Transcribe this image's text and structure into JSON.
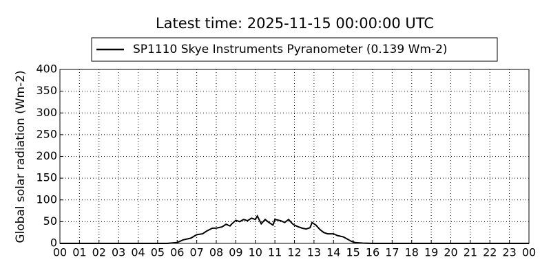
{
  "chart_data": {
    "type": "line",
    "title": "Latest time: 2025-11-15 00:00:00 UTC",
    "ylabel": "Global solar radiation (Wm-2)",
    "x": [
      0,
      5.5,
      6.0,
      6.3,
      6.7,
      7.0,
      7.3,
      7.5,
      7.8,
      8.0,
      8.3,
      8.5,
      8.7,
      8.8,
      9.0,
      9.2,
      9.4,
      9.6,
      9.8,
      10.0,
      10.1,
      10.3,
      10.5,
      10.7,
      10.9,
      11.0,
      11.3,
      11.5,
      11.7,
      11.9,
      12.0,
      12.2,
      12.4,
      12.6,
      12.8,
      12.9,
      13.1,
      13.3,
      13.5,
      13.7,
      14.0,
      14.2,
      14.5,
      14.7,
      14.9,
      15.1,
      15.5,
      16.0,
      24
    ],
    "series": [
      {
        "name": "SP1110 Skye Instruments Pyranometer (0.139 Wm-2)",
        "color": "#000000",
        "values": [
          0,
          0,
          2,
          8,
          12,
          20,
          22,
          28,
          35,
          35,
          38,
          44,
          40,
          45,
          53,
          50,
          55,
          52,
          58,
          55,
          63,
          45,
          55,
          48,
          42,
          55,
          52,
          48,
          55,
          45,
          42,
          38,
          35,
          33,
          36,
          48,
          42,
          32,
          25,
          22,
          22,
          18,
          15,
          10,
          5,
          2,
          0.5,
          0,
          0
        ]
      }
    ],
    "xlim": [
      0,
      24
    ],
    "xticks": [
      {
        "value": 0,
        "label": "00"
      },
      {
        "value": 1,
        "label": "01"
      },
      {
        "value": 2,
        "label": "02"
      },
      {
        "value": 3,
        "label": "03"
      },
      {
        "value": 4,
        "label": "04"
      },
      {
        "value": 5,
        "label": "05"
      },
      {
        "value": 6,
        "label": "06"
      },
      {
        "value": 7,
        "label": "07"
      },
      {
        "value": 8,
        "label": "08"
      },
      {
        "value": 9,
        "label": "09"
      },
      {
        "value": 10,
        "label": "10"
      },
      {
        "value": 11,
        "label": "11"
      },
      {
        "value": 12,
        "label": "12"
      },
      {
        "value": 13,
        "label": "13"
      },
      {
        "value": 14,
        "label": "14"
      },
      {
        "value": 15,
        "label": "15"
      },
      {
        "value": 16,
        "label": "16"
      },
      {
        "value": 17,
        "label": "17"
      },
      {
        "value": 18,
        "label": "18"
      },
      {
        "value": 19,
        "label": "19"
      },
      {
        "value": 20,
        "label": "20"
      },
      {
        "value": 21,
        "label": "21"
      },
      {
        "value": 22,
        "label": "22"
      },
      {
        "value": 23,
        "label": "23"
      },
      {
        "value": 24,
        "label": "00"
      }
    ],
    "ylim": [
      0,
      400
    ],
    "yticks": [
      0,
      50,
      100,
      150,
      200,
      250,
      300,
      350,
      400
    ],
    "grid": true
  }
}
